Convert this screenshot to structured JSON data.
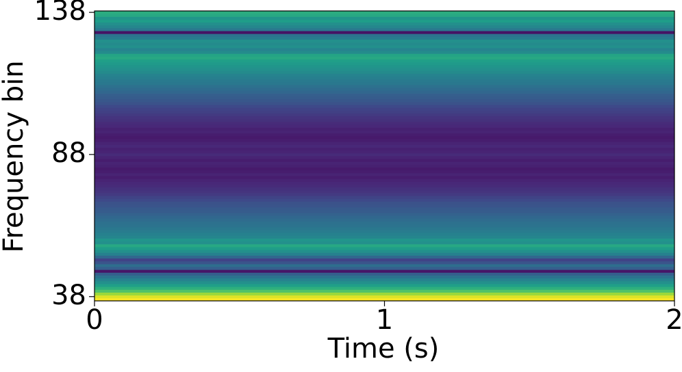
{
  "chart_data": {
    "type": "heatmap",
    "x_label": "Time (s)",
    "y_label": "Frequency bin",
    "xlim": [
      0,
      2
    ],
    "xticks": [
      0,
      1,
      2
    ],
    "ylim": [
      36.5,
      138.5
    ],
    "yticks": [
      38,
      88,
      138
    ],
    "colormap": "viridis",
    "y": [
      37,
      38,
      39,
      40,
      41,
      42,
      43,
      44,
      45,
      46,
      47,
      48,
      49,
      50,
      51,
      52,
      53,
      54,
      55,
      56,
      57,
      58,
      59,
      60,
      61,
      62,
      63,
      64,
      65,
      66,
      67,
      68,
      69,
      70,
      71,
      72,
      73,
      74,
      75,
      76,
      77,
      78,
      79,
      80,
      81,
      82,
      83,
      84,
      85,
      86,
      87,
      88,
      89,
      90,
      91,
      92,
      93,
      94,
      95,
      96,
      97,
      98,
      99,
      100,
      101,
      102,
      103,
      104,
      105,
      106,
      107,
      108,
      109,
      110,
      111,
      112,
      113,
      114,
      115,
      116,
      117,
      118,
      119,
      120,
      121,
      122,
      123,
      124,
      125,
      126,
      127,
      128,
      129,
      130,
      131,
      132,
      133,
      134,
      135,
      136,
      137,
      138
    ],
    "values": [
      1.0,
      0.95,
      0.85,
      0.72,
      0.63,
      0.56,
      0.5,
      0.45,
      0.38,
      0.3,
      0.06,
      0.3,
      0.36,
      0.26,
      0.2,
      0.33,
      0.44,
      0.5,
      0.55,
      0.6,
      0.5,
      0.52,
      0.46,
      0.44,
      0.42,
      0.4,
      0.38,
      0.37,
      0.35,
      0.33,
      0.31,
      0.29,
      0.28,
      0.26,
      0.25,
      0.22,
      0.2,
      0.17,
      0.15,
      0.14,
      0.12,
      0.11,
      0.1,
      0.08,
      0.1,
      0.08,
      0.07,
      0.09,
      0.1,
      0.08,
      0.1,
      0.12,
      0.1,
      0.09,
      0.11,
      0.1,
      0.08,
      0.07,
      0.08,
      0.1,
      0.09,
      0.11,
      0.12,
      0.14,
      0.15,
      0.17,
      0.19,
      0.2,
      0.22,
      0.25,
      0.27,
      0.29,
      0.3,
      0.33,
      0.35,
      0.37,
      0.4,
      0.41,
      0.43,
      0.45,
      0.48,
      0.5,
      0.52,
      0.54,
      0.56,
      0.6,
      0.58,
      0.48,
      0.45,
      0.5,
      0.48,
      0.5,
      0.42,
      0.38,
      0.05,
      0.4,
      0.46,
      0.5,
      0.55,
      0.52,
      0.6,
      0.62
    ]
  }
}
